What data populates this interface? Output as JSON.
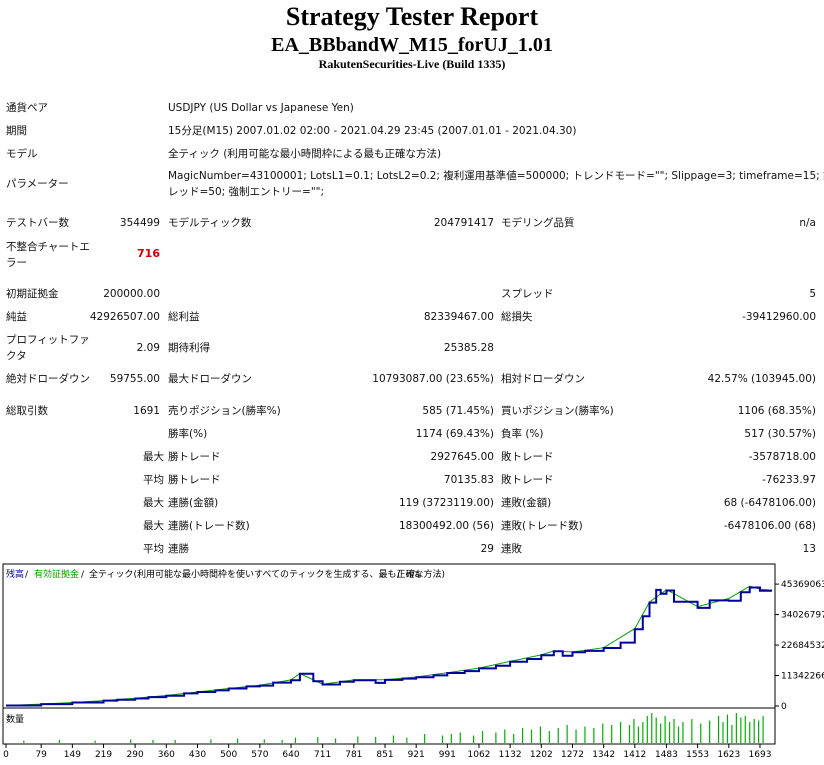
{
  "report": {
    "title": "Strategy Tester Report",
    "ea_name": "EA_BBbandW_M15_forUJ_1.01",
    "server": "RakutenSecurities-Live (Build 1335)"
  },
  "settings": {
    "symbol_label": "通貨ペア",
    "symbol_value": "USDJPY (US Dollar vs Japanese Yen)",
    "period_label": "期間",
    "period_value": "15分足(M15) 2007.01.02 02:00 - 2021.04.29 23:45 (2007.01.01 - 2021.04.30)",
    "model_label": "モデル",
    "model_value": "全ティック (利用可能な最小時間枠による最も正確な方法)",
    "params_label": "パラメーター",
    "params_line1": "MagicNumber=43100001; LotsL1=0.1; LotsL2=0.2; 複利運用基準値=500000; トレンドモード=\"\"; Slippage=3; timeframe=15; 許容スプ",
    "params_line2": "レッド=50; 強制エントリー=\"\";"
  },
  "stats": {
    "bars_label": "テストバー数",
    "bars_value": "354499",
    "ticks_label": "モデルティック数",
    "ticks_value": "204791417",
    "quality_label": "モデリング品質",
    "quality_value": "n/a",
    "mismatch_label_1": "不整合チャートエ",
    "mismatch_label_2": "ラー",
    "mismatch_value": "716",
    "deposit_label": "初期証拠金",
    "deposit_value": "200000.00",
    "spread_label": "スプレッド",
    "spread_value": "5",
    "net_label": "純益",
    "net_value": "42926507.00",
    "gross_profit_label": "総利益",
    "gross_profit_value": "82339467.00",
    "gross_loss_label": "総損失",
    "gross_loss_value": "-39412960.00",
    "pf_label_1": "プロフィットファ",
    "pf_label_2": "クタ",
    "pf_value": "2.09",
    "expected_label": "期待利得",
    "expected_value": "25385.28",
    "abs_dd_label": "絶対ドローダウン",
    "abs_dd_value": "59755.00",
    "max_dd_label": "最大ドローダウン",
    "max_dd_value": "10793087.00 (23.65%)",
    "rel_dd_label": "相対ドローダウン",
    "rel_dd_value": "42.57% (103945.00)",
    "total_trades_label": "総取引数",
    "total_trades_value": "1691",
    "short_label": "売りポジション(勝率%)",
    "short_value": "585 (71.45%)",
    "long_label": "買いポジション(勝率%)",
    "long_value": "1106 (68.35%)",
    "win_rate_label": "勝率(%)",
    "win_rate_value": "1174 (69.43%)",
    "loss_rate_label": "負率 (%)",
    "loss_rate_value": "517 (30.57%)",
    "max_word": "最大",
    "avg_word": "平均",
    "largest_win_label": "勝トレード",
    "largest_win_value": "2927645.00",
    "largest_loss_label": "敗トレード",
    "largest_loss_value": "-3578718.00",
    "avg_win_label": "勝トレード",
    "avg_win_value": "70135.83",
    "avg_loss_label": "敗トレード",
    "avg_loss_value": "-76233.97",
    "cons_win_amt_label": "連勝(金額)",
    "cons_win_amt_value": "119 (3723119.00)",
    "cons_loss_amt_label": "連敗(金額)",
    "cons_loss_amt_value": "68 (-6478106.00)",
    "cons_win_cnt_label": "連勝(トレード数)",
    "cons_win_cnt_value": "18300492.00 (56)",
    "cons_loss_cnt_label": "連敗(トレード数)",
    "cons_loss_cnt_value": "-6478106.00 (68)",
    "avg_cons_win_label": "連勝",
    "avg_cons_win_value": "29",
    "avg_cons_loss_label": "連敗",
    "avg_cons_loss_value": "13"
  },
  "chart_data": {
    "type": "line",
    "legend": {
      "balance": "残高",
      "equity": "有効証拠金",
      "model_text": "全ティック(利用可能な最小時間枠を使いすべてのティックを生成する、最も正確な方法)",
      "quality": "n/a",
      "sep": "/"
    },
    "volume_label": "数量",
    "y_ticks": [
      "45369063",
      "34026797",
      "22684532",
      "11342266",
      "0"
    ],
    "ylim": [
      0,
      49500000
    ],
    "x_ticks": [
      "0",
      "79",
      "149",
      "219",
      "290",
      "360",
      "430",
      "500",
      "570",
      "640",
      "711",
      "781",
      "851",
      "921",
      "991",
      "1062",
      "1132",
      "1202",
      "1272",
      "1342",
      "1412",
      "1483",
      "1553",
      "1623",
      "1693"
    ],
    "xlim": [
      0,
      1720
    ],
    "colors": {
      "balance": "#00009c",
      "equity": "#00a000",
      "volume": "#00b000"
    },
    "series": [
      {
        "name": "残高",
        "x": [
          0,
          79,
          149,
          219,
          250,
          290,
          320,
          360,
          400,
          430,
          470,
          500,
          540,
          570,
          600,
          640,
          660,
          690,
          711,
          750,
          781,
          830,
          851,
          890,
          921,
          960,
          991,
          1030,
          1062,
          1100,
          1132,
          1170,
          1202,
          1230,
          1250,
          1272,
          1300,
          1342,
          1380,
          1412,
          1430,
          1445,
          1460,
          1470,
          1483,
          1500,
          1530,
          1553,
          1580,
          1623,
          1650,
          1670,
          1693,
          1720
        ],
        "y": [
          200000,
          700000,
          1300000,
          2000000,
          2300000,
          2800000,
          3300000,
          3800000,
          4700000,
          5200000,
          5800000,
          6500000,
          7300000,
          7600000,
          8700000,
          9600000,
          12000000,
          9200000,
          8000000,
          9000000,
          9600000,
          8600000,
          9700000,
          10200000,
          10700000,
          11400000,
          12300000,
          13000000,
          14000000,
          15000000,
          16500000,
          17500000,
          18900000,
          20400000,
          18700000,
          20000000,
          20500000,
          21600000,
          23600000,
          28600000,
          33400000,
          38500000,
          43200000,
          41800000,
          43000000,
          38800000,
          38800000,
          36500000,
          39300000,
          39200000,
          42300000,
          44100000,
          42900000,
          42900000
        ]
      },
      {
        "name": "有効証拠金",
        "x": [
          0,
          79,
          149,
          219,
          290,
          360,
          430,
          500,
          570,
          640,
          660,
          711,
          781,
          851,
          921,
          991,
          1062,
          1132,
          1202,
          1230,
          1272,
          1342,
          1412,
          1445,
          1483,
          1530,
          1553,
          1623,
          1670,
          1693,
          1720
        ],
        "y": [
          200000,
          700000,
          1300000,
          2000000,
          2900000,
          3900000,
          5200000,
          6500000,
          7700000,
          9700000,
          12100000,
          8100000,
          9700000,
          9800000,
          10800000,
          12400000,
          14100000,
          16600000,
          19000000,
          20500000,
          20100000,
          21700000,
          28800000,
          38700000,
          43300000,
          39100000,
          37000000,
          40000000,
          44600000,
          43500000,
          43100000
        ]
      }
    ],
    "volume": {
      "x": [
        40,
        120,
        200,
        280,
        330,
        380,
        460,
        520,
        580,
        620,
        650,
        700,
        740,
        790,
        830,
        870,
        900,
        940,
        980,
        1000,
        1020,
        1050,
        1070,
        1100,
        1120,
        1140,
        1160,
        1180,
        1200,
        1220,
        1240,
        1260,
        1280,
        1300,
        1320,
        1340,
        1360,
        1380,
        1400,
        1410,
        1420,
        1430,
        1440,
        1450,
        1460,
        1470,
        1480,
        1490,
        1500,
        1510,
        1520,
        1540,
        1560,
        1580,
        1600,
        1610,
        1620,
        1630,
        1640,
        1650,
        1660,
        1670,
        1680,
        1690,
        1700
      ],
      "v": [
        0.08,
        0.1,
        0.08,
        0.12,
        0.1,
        0.1,
        0.12,
        0.15,
        0.12,
        0.1,
        0.18,
        0.2,
        0.15,
        0.22,
        0.2,
        0.25,
        0.18,
        0.3,
        0.25,
        0.3,
        0.35,
        0.25,
        0.4,
        0.35,
        0.45,
        0.3,
        0.5,
        0.45,
        0.55,
        0.4,
        0.5,
        0.6,
        0.45,
        0.55,
        0.5,
        0.65,
        0.6,
        0.7,
        0.6,
        0.8,
        0.55,
        0.7,
        0.9,
        1.0,
        0.85,
        0.65,
        0.9,
        0.7,
        0.8,
        0.55,
        0.7,
        0.8,
        0.65,
        0.75,
        0.9,
        0.7,
        0.95,
        0.6,
        1.0,
        0.85,
        0.9,
        0.7,
        0.8,
        0.75,
        0.9
      ]
    }
  }
}
